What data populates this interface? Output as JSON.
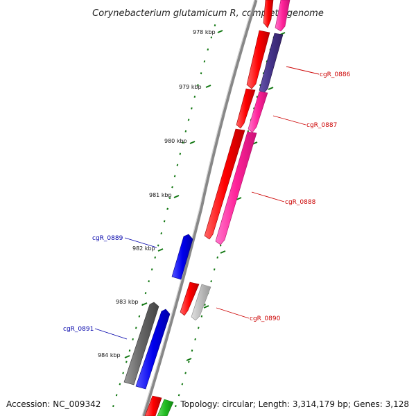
{
  "title": "Corynebacterium glutamicum R, complete genome",
  "ruler": {
    "ticks": [
      {
        "label": "978 kbp",
        "kbp": 978
      },
      {
        "label": "979 kbp",
        "kbp": 979
      },
      {
        "label": "980 kbp",
        "kbp": 980
      },
      {
        "label": "981 kbp",
        "kbp": 981
      },
      {
        "label": "982 kbp",
        "kbp": 982
      },
      {
        "label": "983 kbp",
        "kbp": 983
      },
      {
        "label": "984 kbp",
        "kbp": 984
      }
    ]
  },
  "genes": [
    {
      "label": "cgR_0886",
      "color": "#cc0000"
    },
    {
      "label": "cgR_0887",
      "color": "#cc0000"
    },
    {
      "label": "cgR_0888",
      "color": "#cc0000"
    },
    {
      "label": "cgR_0889",
      "color": "#0000aa"
    },
    {
      "label": "cgR_0890",
      "color": "#cc0000"
    },
    {
      "label": "cgR_0891",
      "color": "#0000aa"
    }
  ],
  "footer": {
    "accession": "Accession: NC_009342",
    "topology": "Topology: circular; Length: 3,314,179 bp; Genes: 3,128"
  },
  "colors": {
    "forward_cds": "#ff0000",
    "forward_gene": "#ff2299",
    "reverse_cds": "#0000ee",
    "dark_gene": "#666666",
    "light_gene": "#bbbbbb",
    "purple_gene": "#443388",
    "green_gene": "#22bb22",
    "backbone": "#888888",
    "tick": "#117711"
  }
}
